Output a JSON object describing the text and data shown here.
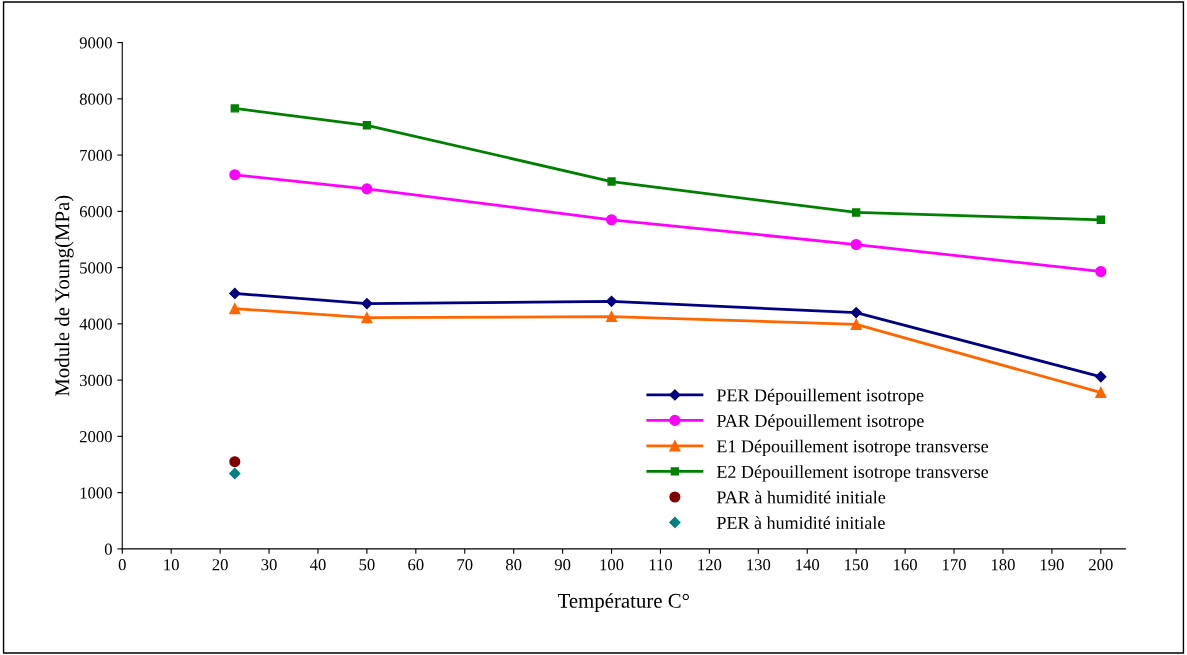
{
  "chart_data": {
    "type": "line",
    "xlabel": "Température C°",
    "ylabel": "Module de Young(MPa)",
    "x": [
      23,
      50,
      100,
      150,
      200
    ],
    "series": [
      {
        "name": "PER Dépouillement isotrope",
        "color": "#000080",
        "marker": "diamond",
        "values": [
          4540,
          4360,
          4400,
          4200,
          3060
        ]
      },
      {
        "name": "PAR Dépouillement isotrope",
        "color": "#ff00ff",
        "marker": "circle",
        "values": [
          6650,
          6400,
          5850,
          5410,
          4930
        ]
      },
      {
        "name": "E1 Dépouillement isotrope transverse",
        "color": "#ff6600",
        "marker": "triangle",
        "values": [
          4270,
          4110,
          4130,
          3990,
          2780
        ]
      },
      {
        "name": "E2 Dépouillement isotrope transverse",
        "color": "#008000",
        "marker": "square",
        "values": [
          7830,
          7530,
          6530,
          5980,
          5850
        ]
      },
      {
        "name": "PAR à humidité initiale",
        "type": "scatter",
        "color": "#800000",
        "marker": "circle",
        "x": [
          23
        ],
        "values": [
          1550
        ]
      },
      {
        "name": "PER à humidité initiale",
        "type": "scatter",
        "color": "#008080",
        "marker": "diamond",
        "x": [
          23
        ],
        "values": [
          1340
        ]
      }
    ],
    "xlim": [
      0,
      205
    ],
    "xticks": [
      0,
      10,
      20,
      30,
      40,
      50,
      60,
      70,
      80,
      90,
      100,
      110,
      120,
      130,
      140,
      150,
      160,
      170,
      180,
      190,
      200
    ],
    "ylim": [
      0,
      9000
    ],
    "yticks": [
      0,
      1000,
      2000,
      3000,
      4000,
      5000,
      6000,
      7000,
      8000,
      9000
    ],
    "grid": false,
    "legend": "bottom right"
  }
}
